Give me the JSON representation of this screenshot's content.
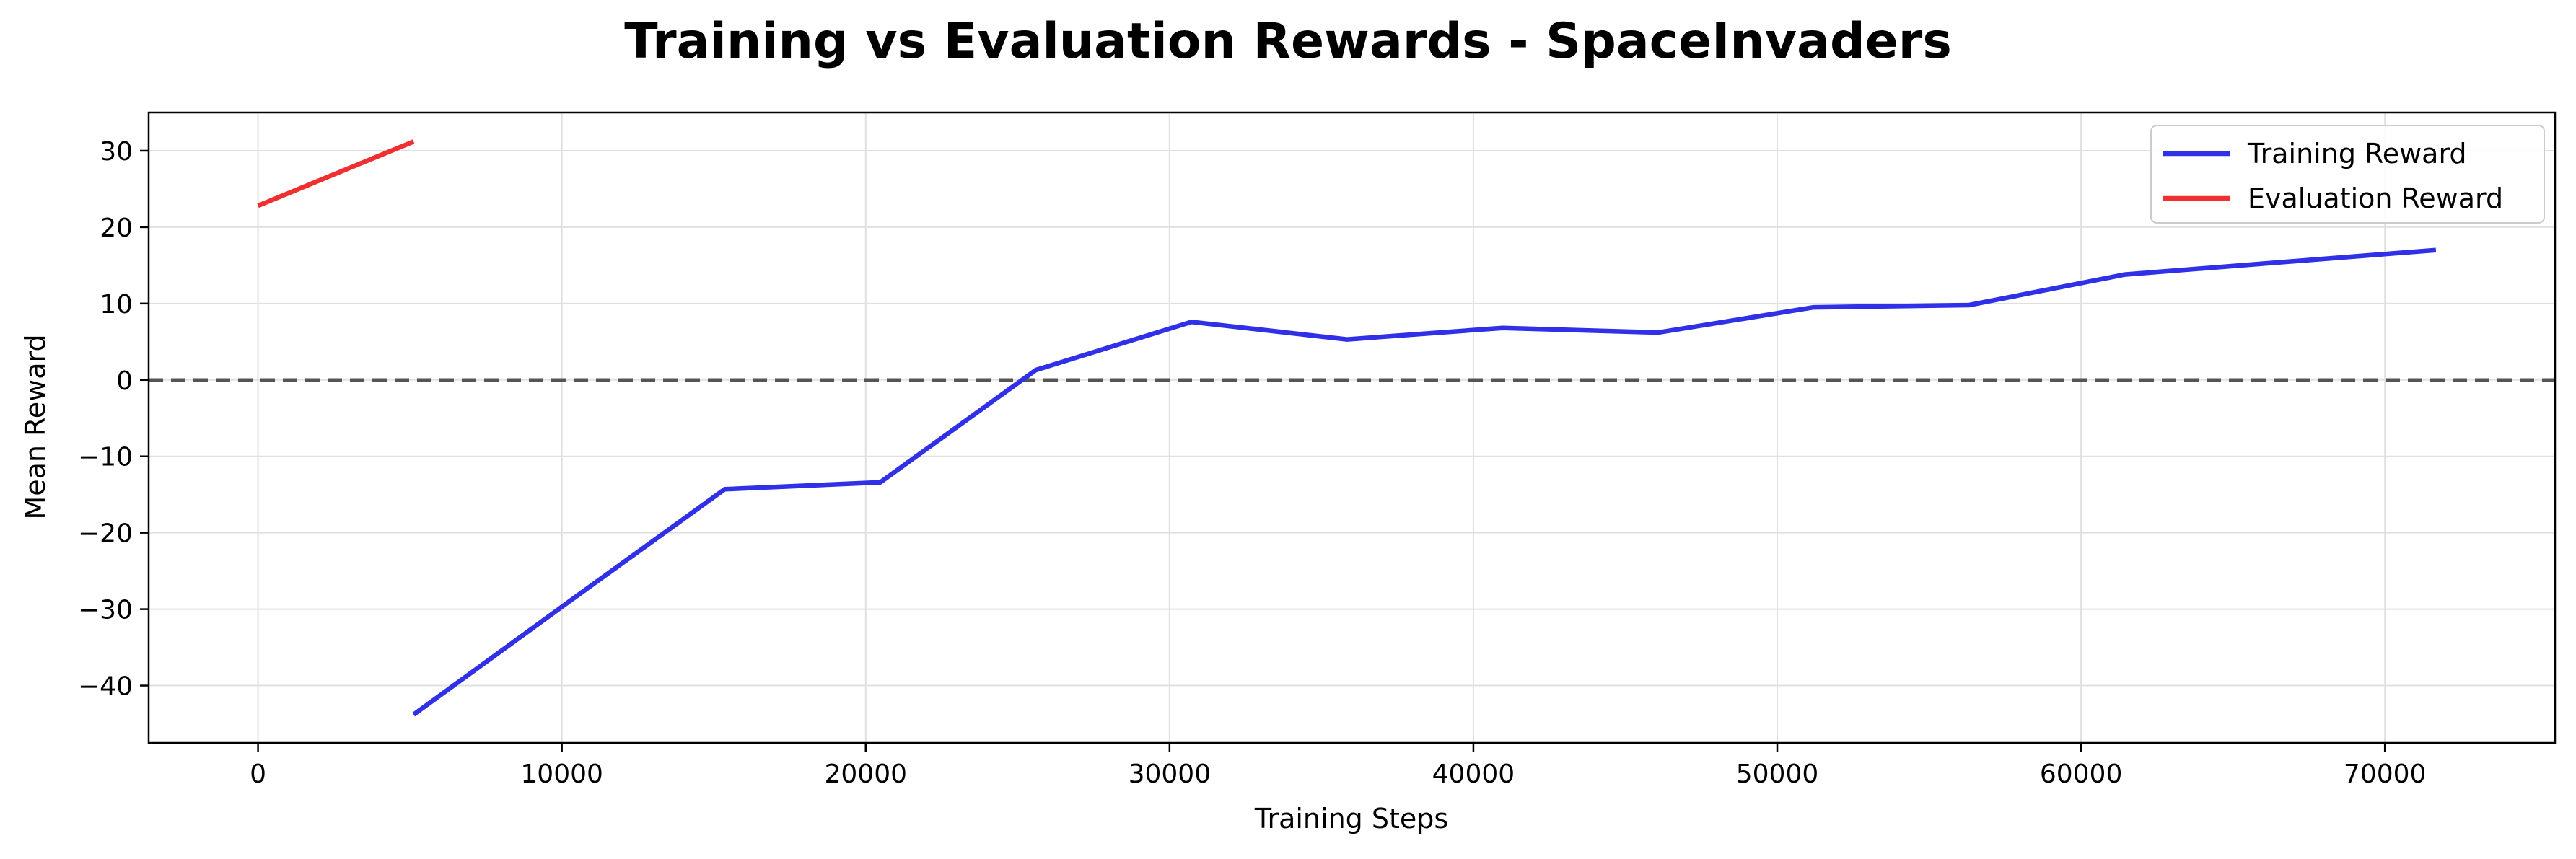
{
  "chart_data": {
    "type": "line",
    "title": "Training vs Evaluation Rewards - SpaceInvaders",
    "xlabel": "Training Steps",
    "ylabel": "Mean Reward",
    "xlim": [
      -3600,
      75600
    ],
    "ylim": [
      -47.5,
      35.0
    ],
    "xticks": [
      0,
      10000,
      20000,
      30000,
      40000,
      50000,
      60000,
      70000
    ],
    "yticks": [
      -40,
      -30,
      -20,
      -10,
      0,
      10,
      20,
      30
    ],
    "xtick_labels": [
      "0",
      "10000",
      "20000",
      "30000",
      "40000",
      "50000",
      "60000",
      "70000"
    ],
    "ytick_labels": [
      "−40",
      "−30",
      "−20",
      "−10",
      "0",
      "10",
      "20",
      "30"
    ],
    "grid": true,
    "reference_line": {
      "y": 0,
      "style": "dashed",
      "color": "#555555"
    },
    "legend_position": "top-right",
    "series": [
      {
        "name": "Training Reward",
        "color": "#3030e8",
        "x": [
          5120,
          10240,
          15360,
          20480,
          25600,
          30720,
          35840,
          40960,
          46080,
          51200,
          56320,
          61440,
          71680
        ],
        "y": [
          -43.8,
          -29.0,
          -14.3,
          -13.4,
          1.3,
          7.6,
          5.3,
          6.8,
          6.2,
          9.5,
          9.8,
          13.8,
          17.0
        ]
      },
      {
        "name": "Evaluation Reward",
        "color": "#f03030",
        "x": [
          0,
          5120
        ],
        "y": [
          22.8,
          31.2
        ]
      }
    ]
  }
}
